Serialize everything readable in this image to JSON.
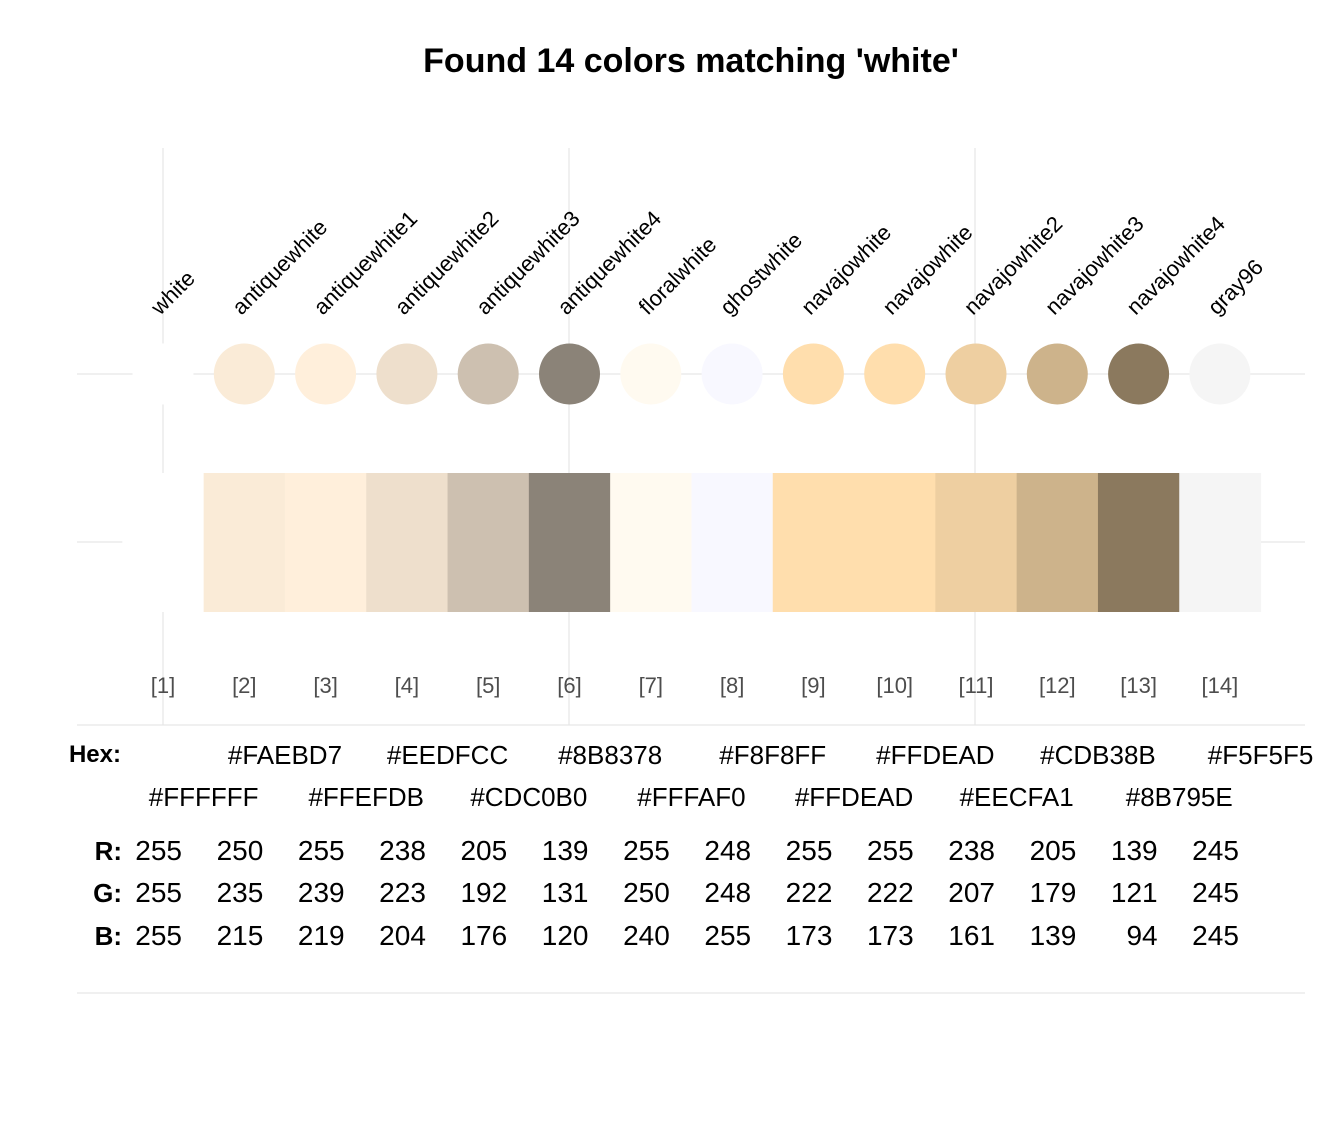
{
  "chart_data": {
    "type": "table",
    "title": "Found 14 colors matching 'white'",
    "hex_label": "Hex:",
    "channel_labels": [
      "R:",
      "G:",
      "B:"
    ],
    "colors": [
      {
        "index": "[1]",
        "name": "white",
        "hex": "#FFFFFF",
        "r": 255,
        "g": 255,
        "b": 255
      },
      {
        "index": "[2]",
        "name": "antiquewhite",
        "hex": "#FAEBD7",
        "r": 250,
        "g": 235,
        "b": 215
      },
      {
        "index": "[3]",
        "name": "antiquewhite1",
        "hex": "#FFEFDB",
        "r": 255,
        "g": 239,
        "b": 219
      },
      {
        "index": "[4]",
        "name": "antiquewhite2",
        "hex": "#EEDFCC",
        "r": 238,
        "g": 223,
        "b": 204
      },
      {
        "index": "[5]",
        "name": "antiquewhite3",
        "hex": "#CDC0B0",
        "r": 205,
        "g": 192,
        "b": 176
      },
      {
        "index": "[6]",
        "name": "antiquewhite4",
        "hex": "#8B8378",
        "r": 139,
        "g": 131,
        "b": 120
      },
      {
        "index": "[7]",
        "name": "floralwhite",
        "hex": "#FFFAF0",
        "r": 255,
        "g": 250,
        "b": 240
      },
      {
        "index": "[8]",
        "name": "ghostwhite",
        "hex": "#F8F8FF",
        "r": 248,
        "g": 248,
        "b": 255
      },
      {
        "index": "[9]",
        "name": "navajowhite",
        "hex": "#FFDEAD",
        "r": 255,
        "g": 222,
        "b": 173
      },
      {
        "index": "[10]",
        "name": "navajowhite",
        "hex": "#FFDEAD",
        "r": 255,
        "g": 222,
        "b": 173
      },
      {
        "index": "[11]",
        "name": "navajowhite2",
        "hex": "#EECFA1",
        "r": 238,
        "g": 207,
        "b": 161
      },
      {
        "index": "[12]",
        "name": "navajowhite3",
        "hex": "#CDB38B",
        "r": 205,
        "g": 179,
        "b": 139
      },
      {
        "index": "[13]",
        "name": "navajowhite4",
        "hex": "#8B795E",
        "r": 139,
        "g": 121,
        "b": 94
      },
      {
        "index": "[14]",
        "name": "gray96",
        "hex": "#F5F5F5",
        "r": 245,
        "g": 245,
        "b": 245
      }
    ]
  }
}
